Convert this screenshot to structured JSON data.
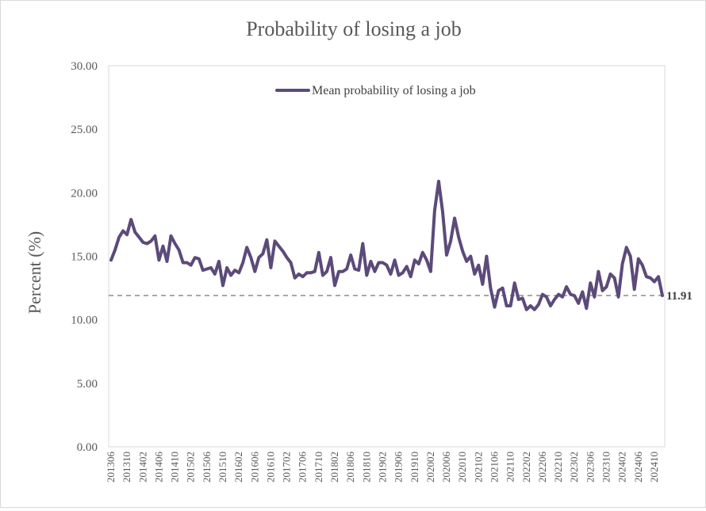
{
  "chart_data": {
    "type": "line",
    "title": "Probability  of losing  a job",
    "ylabel": "Percent (%)",
    "xlabel": "",
    "ylim": [
      0,
      30
    ],
    "y_ticks": [
      "0.00",
      "5.00",
      "10.00",
      "15.00",
      "20.00",
      "25.00",
      "30.00"
    ],
    "x_tick_labels": [
      "201306",
      "201310",
      "201402",
      "201406",
      "201410",
      "201502",
      "201506",
      "201510",
      "201602",
      "201606",
      "201610",
      "201702",
      "201706",
      "201710",
      "201802",
      "201806",
      "201810",
      "201902",
      "201906",
      "201910",
      "202002",
      "202006",
      "202010",
      "202102",
      "202106",
      "202110",
      "202202",
      "202206",
      "202210",
      "202302",
      "202306",
      "202310",
      "202402",
      "202406",
      "202410"
    ],
    "x_start": "2013-06",
    "series": [
      {
        "name": "Mean probability of losing a job",
        "color": "#5c4a7a",
        "values": [
          14.7,
          15.5,
          16.5,
          17.0,
          16.7,
          17.9,
          16.9,
          16.5,
          16.1,
          16.0,
          16.2,
          16.6,
          14.7,
          15.8,
          14.6,
          16.6,
          16.0,
          15.5,
          14.5,
          14.5,
          14.3,
          14.9,
          14.8,
          13.9,
          14.0,
          14.1,
          13.6,
          14.6,
          12.7,
          14.1,
          13.5,
          13.9,
          13.7,
          14.5,
          15.7,
          14.9,
          13.8,
          14.9,
          15.2,
          16.3,
          14.1,
          16.2,
          15.8,
          15.4,
          14.9,
          14.5,
          13.3,
          13.6,
          13.4,
          13.7,
          13.7,
          13.8,
          15.3,
          13.5,
          13.8,
          14.9,
          12.7,
          13.8,
          13.8,
          14.0,
          15.1,
          14.0,
          13.9,
          16.0,
          13.5,
          14.6,
          13.8,
          14.5,
          14.5,
          14.3,
          13.6,
          14.7,
          13.5,
          13.7,
          14.2,
          13.4,
          14.7,
          14.4,
          15.3,
          14.7,
          13.8,
          18.6,
          20.9,
          18.5,
          15.1,
          16.2,
          18.0,
          16.5,
          15.4,
          14.6,
          15.0,
          13.6,
          14.3,
          12.8,
          15.0,
          12.5,
          11.0,
          12.3,
          12.5,
          11.1,
          11.1,
          12.9,
          11.6,
          11.7,
          10.8,
          11.1,
          10.8,
          11.2,
          12.0,
          11.8,
          11.1,
          11.6,
          12.0,
          11.8,
          12.6,
          12.0,
          11.9,
          11.3,
          12.2,
          10.9,
          12.9,
          11.8,
          13.8,
          12.3,
          12.6,
          13.6,
          13.3,
          11.8,
          14.4,
          15.7,
          15.0,
          12.4,
          14.8,
          14.3,
          13.4,
          13.3,
          13.0,
          13.4,
          11.91
        ]
      }
    ],
    "reference_line": {
      "value": 11.91,
      "label": "11.91",
      "style": "dashed"
    },
    "grid": false,
    "legend": "top-center"
  }
}
